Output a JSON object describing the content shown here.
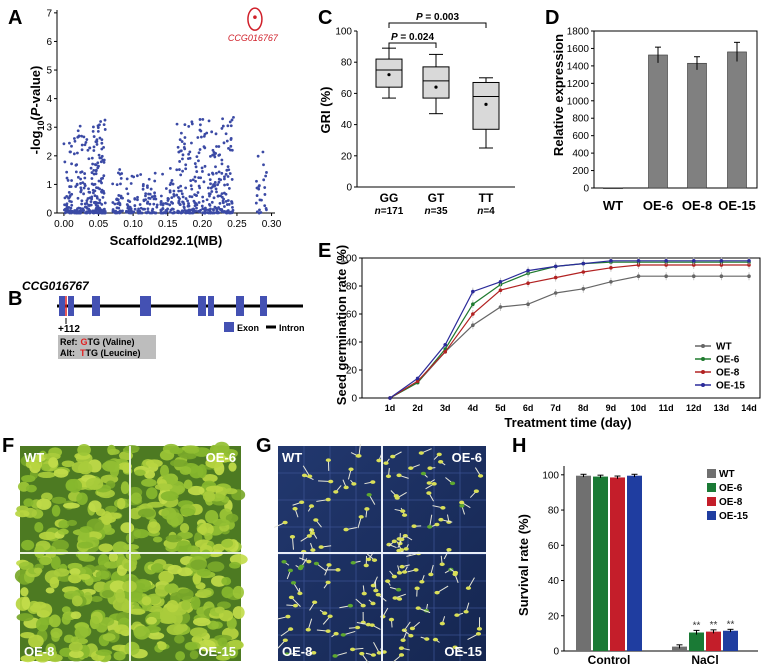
{
  "figure": {
    "panel_labels": {
      "A": "A",
      "B": "B",
      "C": "C",
      "D": "D",
      "E": "E",
      "F": "F",
      "G": "G",
      "H": "H"
    }
  },
  "chart_data": [
    {
      "panel": "A",
      "type": "scatter",
      "title": "",
      "xlabel": "Scaffold292.1(MB)",
      "ylabel": "-log10(P-value)",
      "ylabel_parts": {
        "prefix": "-log",
        "sub": "10",
        "open": "(",
        "italic": "P",
        "suffix": "-value)"
      },
      "xlim": [
        -0.01,
        0.305
      ],
      "ylim": [
        0,
        7.1
      ],
      "xticks": [
        "0.00",
        "0.05",
        "0.10",
        "0.15",
        "0.20",
        "0.25",
        "0.30"
      ],
      "yticks": [
        "0",
        "1",
        "2",
        "3",
        "4",
        "5",
        "6",
        "7"
      ],
      "series_color": "#3b4aa5",
      "highlight": {
        "label": "CCG016767",
        "x": 0.276,
        "y": 6.85,
        "color": "#d0202a"
      },
      "point_clusters": [
        {
          "x_min": 0.0,
          "x_max": 0.012,
          "count": 45,
          "y_max": 3.0
        },
        {
          "x_min": 0.015,
          "x_max": 0.06,
          "count": 230,
          "y_max": 3.3
        },
        {
          "x_min": 0.07,
          "x_max": 0.085,
          "count": 40,
          "y_max": 1.6
        },
        {
          "x_min": 0.09,
          "x_max": 0.135,
          "count": 90,
          "y_max": 1.4
        },
        {
          "x_min": 0.14,
          "x_max": 0.16,
          "count": 50,
          "y_max": 1.7
        },
        {
          "x_min": 0.163,
          "x_max": 0.245,
          "count": 300,
          "y_max": 3.4
        },
        {
          "x_min": 0.278,
          "x_max": 0.293,
          "count": 25,
          "y_max": 2.2
        }
      ]
    },
    {
      "panel": "C",
      "type": "box",
      "title": "",
      "xlabel": "",
      "ylabel": "GRI (%)",
      "ylim": [
        0,
        100
      ],
      "yticks": [
        "0",
        "20",
        "40",
        "60",
        "80",
        "100"
      ],
      "categories": [
        "GG",
        "GT",
        "TT"
      ],
      "n_labels": [
        "n=171",
        "n=35",
        "n=4"
      ],
      "n_parts": [
        {
          "n": "n",
          "rest": "=171"
        },
        {
          "n": "n",
          "rest": "=35"
        },
        {
          "n": "n",
          "rest": "=4"
        }
      ],
      "boxes": [
        {
          "min": 57,
          "q1": 64,
          "median": 75,
          "q3": 82,
          "max": 89,
          "mean": 72
        },
        {
          "min": 47,
          "q1": 57,
          "median": 68,
          "q3": 77,
          "max": 85,
          "mean": 64
        },
        {
          "min": 25,
          "q1": 37,
          "median": 58,
          "q3": 67,
          "max": 70,
          "mean": 53
        }
      ],
      "annotations": [
        {
          "label": "P = 0.024",
          "p_text": "P",
          "rest": " = 0.024",
          "from": "GG",
          "to": "GT"
        },
        {
          "label": "P = 0.003",
          "p_text": "P",
          "rest": " = 0.003",
          "from": "GG",
          "to": "TT"
        }
      ]
    },
    {
      "panel": "D",
      "type": "bar",
      "title": "",
      "xlabel": "",
      "ylabel": "Relative expression",
      "ylim": [
        0,
        1800
      ],
      "yticks": [
        "0",
        "200",
        "400",
        "600",
        "800",
        "1000",
        "1200",
        "1400",
        "1600",
        "1800"
      ],
      "categories": [
        "WT",
        "OE-6",
        "OE-8",
        "OE-15"
      ],
      "values": [
        1,
        1525,
        1430,
        1560
      ],
      "errors": [
        0,
        90,
        75,
        110
      ],
      "bar_color": "#808080"
    },
    {
      "panel": "E",
      "type": "line",
      "title": "",
      "xlabel": "Treatment time (day)",
      "ylabel": "Seed germination rate (%)",
      "ylim": [
        0,
        100
      ],
      "yticks": [
        "0",
        "20",
        "40",
        "60",
        "80",
        "100"
      ],
      "categories": [
        "1d",
        "2d",
        "3d",
        "4d",
        "5d",
        "6d",
        "7d",
        "8d",
        "9d",
        "10d",
        "11d",
        "12d",
        "13d",
        "14d"
      ],
      "series": [
        {
          "name": "WT",
          "color": "#666666",
          "values": [
            0,
            11,
            33,
            52,
            65,
            67,
            75,
            78,
            83,
            87,
            87,
            87,
            87,
            87
          ]
        },
        {
          "name": "OE-6",
          "color": "#1f7a2e",
          "values": [
            0,
            11,
            35,
            67,
            81,
            89,
            94,
            96,
            97,
            97,
            97,
            97,
            97,
            97
          ]
        },
        {
          "name": "OE-8",
          "color": "#b22222",
          "values": [
            0,
            12,
            33,
            60,
            77,
            82,
            86,
            90,
            93,
            95,
            95,
            95,
            95,
            95
          ]
        },
        {
          "name": "OE-15",
          "color": "#2b2b9a",
          "values": [
            0,
            14,
            38,
            76,
            83,
            91,
            94,
            96,
            98,
            98,
            98,
            98,
            98,
            98
          ]
        }
      ],
      "legend_position": "bottom-right"
    },
    {
      "panel": "H",
      "type": "bar",
      "title": "",
      "xlabel": "",
      "ylabel": "Survival rate (%)",
      "ylim": [
        0,
        105
      ],
      "yticks": [
        "0",
        "20",
        "40",
        "60",
        "80",
        "100"
      ],
      "categories": [
        "Control",
        "NaCl"
      ],
      "series": [
        {
          "name": "WT",
          "color": "#707070",
          "values": [
            99.5,
            2.5
          ],
          "errors": [
            0.8,
            1.0
          ]
        },
        {
          "name": "OE-6",
          "color": "#1a7a35",
          "values": [
            99,
            10.5
          ],
          "errors": [
            0.8,
            1.2
          ]
        },
        {
          "name": "OE-8",
          "color": "#c41e2a",
          "values": [
            98.5,
            11
          ],
          "errors": [
            0.8,
            1.0
          ]
        },
        {
          "name": "OE-15",
          "color": "#1f3da0",
          "values": [
            99.5,
            11.5
          ],
          "errors": [
            0.8,
            0.8
          ]
        }
      ],
      "significance": "**",
      "legend_position": "top-right"
    }
  ],
  "gene_model": {
    "gene_name": "CCG016767",
    "position_label": "+112",
    "exon_label": "Exon",
    "intron_label": "Intron",
    "ref_label": "Ref:",
    "ref_letter": "G",
    "ref_rest": "TG (Valine)",
    "alt_label": "Alt:",
    "alt_letter": "T",
    "alt_rest": "TG (Leucine)",
    "exon_color": "#4451b3",
    "snp_color": "#e02020",
    "exon_count": 7
  },
  "photos": {
    "F": {
      "labels": [
        "WT",
        "OE-6",
        "OE-8",
        "OE-15"
      ]
    },
    "G": {
      "labels": [
        "WT",
        "OE-6",
        "OE-8",
        "OE-15"
      ]
    }
  }
}
